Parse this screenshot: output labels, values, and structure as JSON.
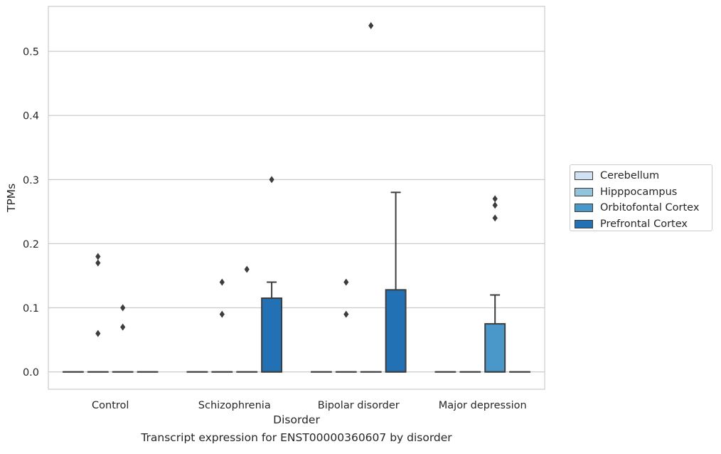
{
  "chart_data": {
    "type": "box",
    "ylabel": "TPMs",
    "xlabel": "Disorder",
    "caption": "Transcript expression for ENST00000360607 by disorder",
    "ylim": [
      -0.027,
      0.57
    ],
    "yticks": [
      0.0,
      0.1,
      0.2,
      0.3,
      0.4,
      0.5
    ],
    "ytick_labels": [
      "0.0",
      "0.1",
      "0.2",
      "0.3",
      "0.4",
      "0.5"
    ],
    "grid": "horizontal",
    "legend_placement": "outside-right",
    "categories": [
      "Control",
      "Schizophrenia",
      "Bipolar disorder",
      "Major depression"
    ],
    "series": [
      {
        "name": "Cerebellum",
        "color": "#cfe1f2",
        "boxes": [
          {
            "q1": 0,
            "median": 0,
            "q3": 0,
            "whislo": 0,
            "whishi": 0,
            "fliers": []
          },
          {
            "q1": 0,
            "median": 0,
            "q3": 0,
            "whislo": 0,
            "whishi": 0,
            "fliers": []
          },
          {
            "q1": 0,
            "median": 0,
            "q3": 0,
            "whislo": 0,
            "whishi": 0,
            "fliers": []
          },
          {
            "q1": 0,
            "median": 0,
            "q3": 0,
            "whislo": 0,
            "whishi": 0,
            "fliers": []
          }
        ]
      },
      {
        "name": "Hipppocampus",
        "color": "#93c4de",
        "boxes": [
          {
            "q1": 0,
            "median": 0,
            "q3": 0,
            "whislo": 0,
            "whishi": 0,
            "fliers": [
              0.06,
              0.17,
              0.18
            ]
          },
          {
            "q1": 0,
            "median": 0,
            "q3": 0,
            "whislo": 0,
            "whishi": 0,
            "fliers": [
              0.09,
              0.14
            ]
          },
          {
            "q1": 0,
            "median": 0,
            "q3": 0,
            "whislo": 0,
            "whishi": 0,
            "fliers": [
              0.09,
              0.14
            ]
          },
          {
            "q1": 0,
            "median": 0,
            "q3": 0,
            "whislo": 0,
            "whishi": 0,
            "fliers": []
          }
        ]
      },
      {
        "name": "Orbitofontal Cortex",
        "color": "#4a98c9",
        "boxes": [
          {
            "q1": 0,
            "median": 0,
            "q3": 0,
            "whislo": 0,
            "whishi": 0,
            "fliers": [
              0.07,
              0.1
            ]
          },
          {
            "q1": 0,
            "median": 0,
            "q3": 0,
            "whislo": 0,
            "whishi": 0,
            "fliers": [
              0.16
            ]
          },
          {
            "q1": 0,
            "median": 0,
            "q3": 0,
            "whislo": 0,
            "whishi": 0,
            "fliers": [
              0.54
            ]
          },
          {
            "q1": 0,
            "median": 0,
            "q3": 0.075,
            "whislo": 0,
            "whishi": 0.12,
            "fliers": [
              0.24,
              0.26,
              0.27
            ]
          }
        ]
      },
      {
        "name": "Prefrontal Cortex",
        "color": "#2271b5",
        "boxes": [
          {
            "q1": 0,
            "median": 0,
            "q3": 0,
            "whislo": 0,
            "whishi": 0,
            "fliers": []
          },
          {
            "q1": 0,
            "median": 0,
            "q3": 0.115,
            "whislo": 0,
            "whishi": 0.14,
            "fliers": [
              0.3
            ]
          },
          {
            "q1": 0,
            "median": 0,
            "q3": 0.128,
            "whislo": 0,
            "whishi": 0.28,
            "fliers": []
          },
          {
            "q1": 0,
            "median": 0,
            "q3": 0,
            "whislo": 0,
            "whishi": 0,
            "fliers": []
          }
        ]
      }
    ]
  }
}
